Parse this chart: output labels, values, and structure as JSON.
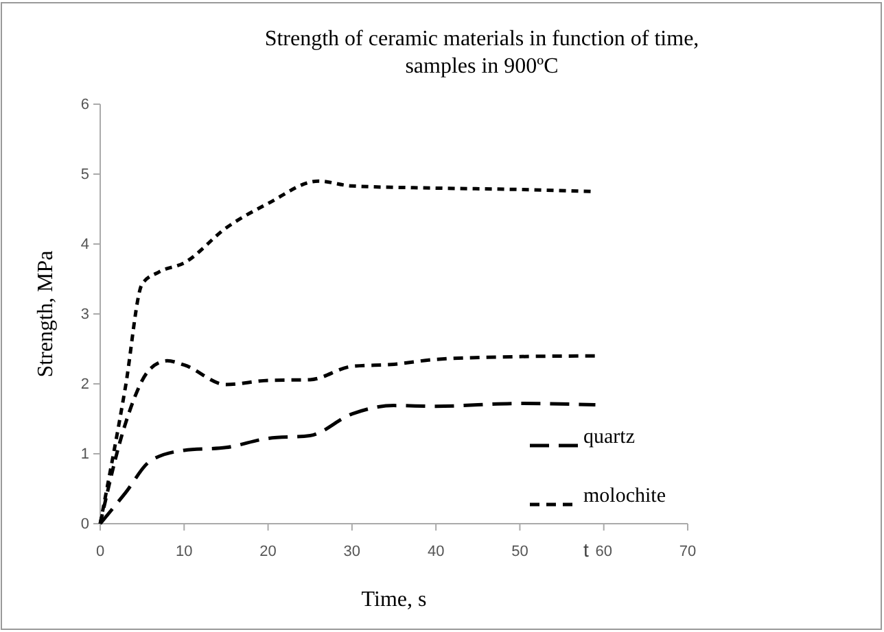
{
  "chart_data": {
    "type": "line",
    "title": "Strength of ceramic materials in function of time,\nsamples in 900ºC",
    "xlabel": "Time, s",
    "ylabel": "Strength, MPa",
    "xlim": [
      0,
      70
    ],
    "xticks": [
      0,
      10,
      20,
      30,
      40,
      50,
      60,
      70
    ],
    "ylim": [
      0,
      6
    ],
    "yticks": [
      0,
      1,
      2,
      3,
      4,
      5,
      6
    ],
    "grid": false,
    "legend": "bottom right",
    "line_style": "dashed",
    "marker": "none",
    "series": [
      {
        "name": "quartz",
        "color": "#000000",
        "x": [
          0,
          3,
          6,
          10,
          15,
          20,
          25,
          30,
          35,
          40,
          50,
          59
        ],
        "values": [
          0,
          0.44,
          0.9,
          1.05,
          1.09,
          1.22,
          1.26,
          1.57,
          1.69,
          1.68,
          1.72,
          1.7
        ]
      },
      {
        "name": "molochite",
        "color": "#000000",
        "x": [
          0,
          3,
          6,
          8,
          10,
          15,
          20,
          25,
          30,
          35,
          40,
          50,
          59
        ],
        "values": [
          0,
          1.43,
          2.22,
          2.33,
          2.27,
          1.99,
          2.05,
          2.06,
          2.25,
          2.28,
          2.35,
          2.39,
          2.4
        ]
      },
      {
        "color": "#000000",
        "x": [
          0,
          3,
          5,
          7,
          10,
          15,
          20,
          26,
          30,
          40,
          50,
          59
        ],
        "values": [
          0,
          1.95,
          3.43,
          3.6,
          3.73,
          4.23,
          4.58,
          4.9,
          4.83,
          4.8,
          4.78,
          4.75
        ]
      }
    ],
    "annotations": [
      "t"
    ]
  }
}
